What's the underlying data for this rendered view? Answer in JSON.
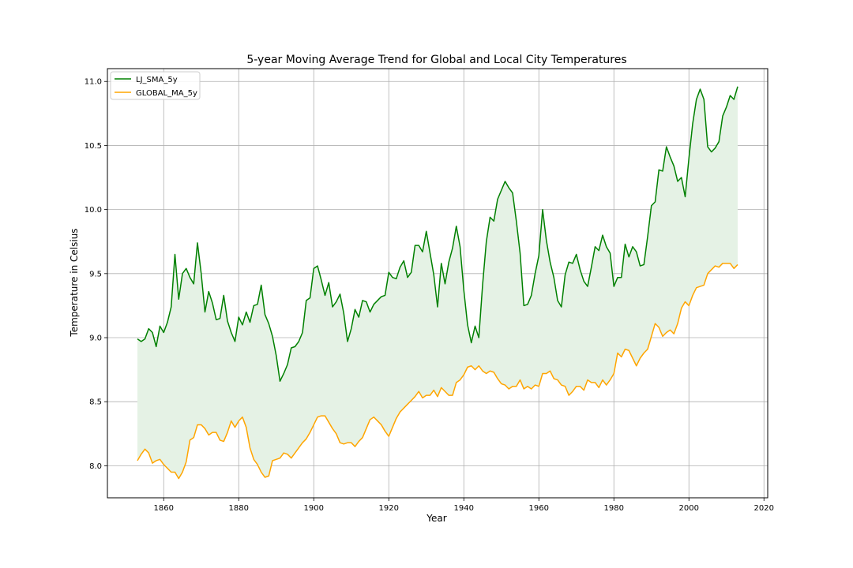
{
  "chart_data": {
    "type": "line",
    "title": "5-year Moving Average Trend for Global and Local City Temperatures",
    "xlabel": "Year",
    "ylabel": "Temperature in Celsius",
    "xlim": [
      1845,
      2021
    ],
    "ylim": [
      7.75,
      11.1
    ],
    "xticks": [
      1860,
      1880,
      1900,
      1920,
      1940,
      1960,
      1980,
      2000,
      2020
    ],
    "xtick_labels": [
      "1860",
      "1880",
      "1900",
      "1920",
      "1940",
      "1960",
      "1980",
      "2000",
      "2020"
    ],
    "yticks": [
      8.0,
      8.5,
      9.0,
      9.5,
      10.0,
      10.5,
      11.0
    ],
    "ytick_labels": [
      "8.0",
      "8.5",
      "9.0",
      "9.5",
      "10.0",
      "10.5",
      "11.0"
    ],
    "grid": true,
    "legend_position": "upper-left",
    "fill_between": {
      "color": "#e5f2e5",
      "between": [
        "LJ_SMA_5y",
        "GLOBAL_MA_5y"
      ]
    },
    "x": [
      1853,
      1854,
      1855,
      1856,
      1857,
      1858,
      1859,
      1860,
      1861,
      1862,
      1863,
      1864,
      1865,
      1866,
      1867,
      1868,
      1869,
      1870,
      1871,
      1872,
      1873,
      1874,
      1875,
      1876,
      1877,
      1878,
      1879,
      1880,
      1881,
      1882,
      1883,
      1884,
      1885,
      1886,
      1887,
      1888,
      1889,
      1890,
      1891,
      1892,
      1893,
      1894,
      1895,
      1896,
      1897,
      1898,
      1899,
      1900,
      1901,
      1902,
      1903,
      1904,
      1905,
      1906,
      1907,
      1908,
      1909,
      1910,
      1911,
      1912,
      1913,
      1914,
      1915,
      1916,
      1917,
      1918,
      1919,
      1920,
      1921,
      1922,
      1923,
      1924,
      1925,
      1926,
      1927,
      1928,
      1929,
      1930,
      1931,
      1932,
      1933,
      1934,
      1935,
      1936,
      1937,
      1938,
      1939,
      1940,
      1941,
      1942,
      1943,
      1944,
      1945,
      1946,
      1947,
      1948,
      1949,
      1950,
      1951,
      1952,
      1953,
      1954,
      1955,
      1956,
      1957,
      1958,
      1959,
      1960,
      1961,
      1962,
      1963,
      1964,
      1965,
      1966,
      1967,
      1968,
      1969,
      1970,
      1971,
      1972,
      1973,
      1974,
      1975,
      1976,
      1977,
      1978,
      1979,
      1980,
      1981,
      1982,
      1983,
      1984,
      1985,
      1986,
      1987,
      1988,
      1989,
      1990,
      1991,
      1992,
      1993,
      1994,
      1995,
      1996,
      1997,
      1998,
      1999,
      2000,
      2001,
      2002,
      2003,
      2004,
      2005,
      2006,
      2007,
      2008,
      2009,
      2010,
      2011,
      2012,
      2013
    ],
    "series": [
      {
        "name": "LJ_SMA_5y",
        "color": "#008000",
        "values": [
          8.99,
          8.97,
          8.99,
          9.07,
          9.04,
          8.93,
          9.09,
          9.04,
          9.12,
          9.24,
          9.65,
          9.3,
          9.5,
          9.54,
          9.47,
          9.42,
          9.74,
          9.5,
          9.2,
          9.36,
          9.27,
          9.14,
          9.15,
          9.33,
          9.13,
          9.04,
          8.97,
          9.16,
          9.1,
          9.2,
          9.12,
          9.25,
          9.26,
          9.41,
          9.18,
          9.11,
          9.01,
          8.86,
          8.66,
          8.72,
          8.79,
          8.92,
          8.93,
          8.97,
          9.04,
          9.29,
          9.31,
          9.54,
          9.56,
          9.45,
          9.33,
          9.43,
          9.24,
          9.28,
          9.34,
          9.19,
          8.97,
          9.07,
          9.22,
          9.16,
          9.29,
          9.28,
          9.2,
          9.26,
          9.29,
          9.32,
          9.33,
          9.51,
          9.47,
          9.46,
          9.55,
          9.6,
          9.47,
          9.51,
          9.72,
          9.72,
          9.67,
          9.83,
          9.66,
          9.49,
          9.24,
          9.58,
          9.42,
          9.59,
          9.7,
          9.87,
          9.71,
          9.37,
          9.1,
          8.96,
          9.09,
          9.0,
          9.41,
          9.75,
          9.94,
          9.91,
          10.08,
          10.15,
          10.22,
          10.17,
          10.13,
          9.91,
          9.66,
          9.25,
          9.26,
          9.33,
          9.5,
          9.64,
          10.0,
          9.76,
          9.59,
          9.47,
          9.29,
          9.24,
          9.49,
          9.59,
          9.58,
          9.65,
          9.53,
          9.44,
          9.4,
          9.55,
          9.71,
          9.68,
          9.8,
          9.71,
          9.66,
          9.4,
          9.47,
          9.47,
          9.73,
          9.63,
          9.71,
          9.67,
          9.56,
          9.57,
          9.79,
          10.03,
          10.06,
          10.31,
          10.3,
          10.49,
          10.41,
          10.34,
          10.22,
          10.25,
          10.1,
          10.4,
          10.67,
          10.86,
          10.94,
          10.86,
          10.49,
          10.45,
          10.48,
          10.53,
          10.73,
          10.8,
          10.89,
          10.86,
          10.96
        ]
      },
      {
        "name": "GLOBAL_MA_5y",
        "color": "#ffa500",
        "values": [
          8.04,
          8.09,
          8.13,
          8.1,
          8.02,
          8.04,
          8.05,
          8.01,
          7.98,
          7.95,
          7.95,
          7.9,
          7.95,
          8.03,
          8.2,
          8.22,
          8.32,
          8.32,
          8.29,
          8.24,
          8.26,
          8.26,
          8.2,
          8.19,
          8.26,
          8.35,
          8.3,
          8.35,
          8.38,
          8.3,
          8.14,
          8.05,
          8.01,
          7.95,
          7.91,
          7.92,
          8.04,
          8.05,
          8.06,
          8.1,
          8.09,
          8.06,
          8.1,
          8.14,
          8.18,
          8.21,
          8.26,
          8.32,
          8.38,
          8.39,
          8.39,
          8.34,
          8.29,
          8.25,
          8.18,
          8.17,
          8.18,
          8.18,
          8.15,
          8.19,
          8.22,
          8.29,
          8.36,
          8.38,
          8.35,
          8.32,
          8.27,
          8.23,
          8.3,
          8.37,
          8.42,
          8.45,
          8.48,
          8.51,
          8.54,
          8.58,
          8.53,
          8.55,
          8.55,
          8.59,
          8.54,
          8.61,
          8.58,
          8.55,
          8.55,
          8.65,
          8.67,
          8.71,
          8.77,
          8.78,
          8.75,
          8.78,
          8.74,
          8.72,
          8.74,
          8.73,
          8.68,
          8.64,
          8.63,
          8.6,
          8.62,
          8.62,
          8.67,
          8.6,
          8.62,
          8.6,
          8.63,
          8.62,
          8.72,
          8.72,
          8.74,
          8.68,
          8.67,
          8.63,
          8.62,
          8.55,
          8.58,
          8.62,
          8.62,
          8.59,
          8.67,
          8.65,
          8.65,
          8.61,
          8.67,
          8.63,
          8.67,
          8.72,
          8.88,
          8.85,
          8.91,
          8.9,
          8.84,
          8.78,
          8.84,
          8.88,
          8.91,
          9.01,
          9.11,
          9.08,
          9.01,
          9.04,
          9.06,
          9.03,
          9.11,
          9.23,
          9.28,
          9.25,
          9.33,
          9.39,
          9.4,
          9.41,
          9.5,
          9.53,
          9.56,
          9.55,
          9.58,
          9.58,
          9.58,
          9.54,
          9.57
        ]
      }
    ]
  }
}
